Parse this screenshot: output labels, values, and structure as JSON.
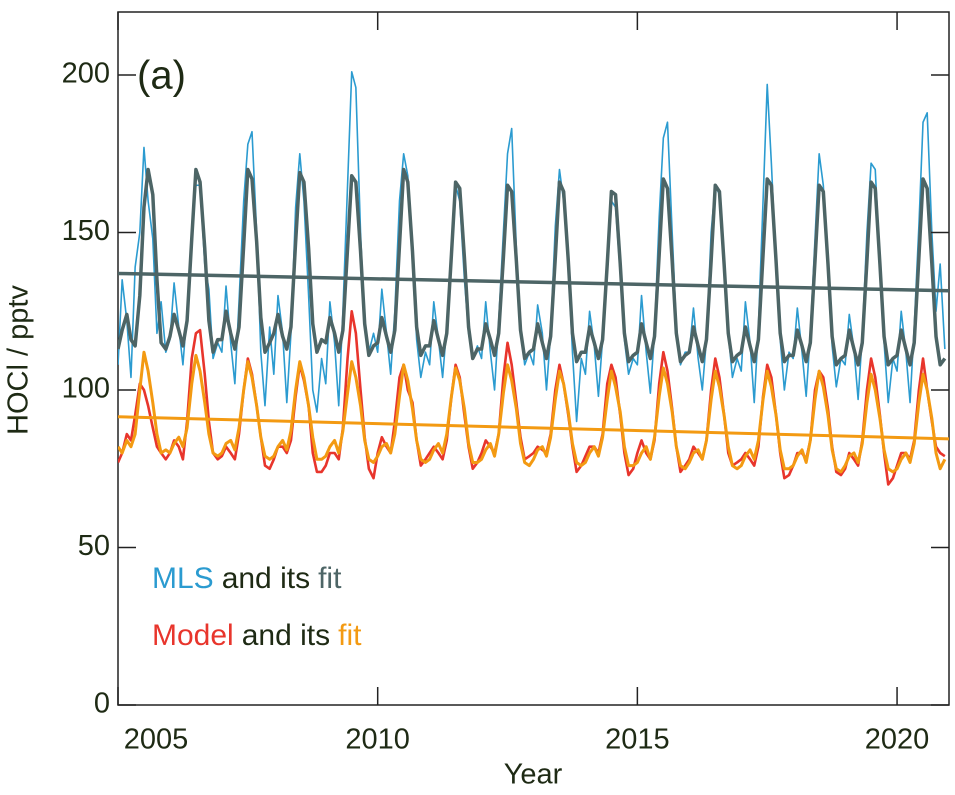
{
  "chart_data": {
    "type": "line",
    "annotation": "(a)",
    "xlabel": "Year",
    "ylabel": "HOCl / pptv",
    "legend_connector": "and its",
    "xlim": [
      2005,
      2021
    ],
    "ylim": [
      0,
      220
    ],
    "xticks": [
      2005,
      2010,
      2015,
      2020
    ],
    "yticks": [
      0,
      50,
      100,
      150,
      200
    ],
    "x": [
      2005,
      2005.08,
      2005.17,
      2005.25,
      2005.33,
      2005.42,
      2005.5,
      2005.58,
      2005.67,
      2005.75,
      2005.83,
      2005.92,
      2006,
      2006.08,
      2006.17,
      2006.25,
      2006.33,
      2006.42,
      2006.5,
      2006.58,
      2006.67,
      2006.75,
      2006.83,
      2006.92,
      2007,
      2007.08,
      2007.17,
      2007.25,
      2007.33,
      2007.42,
      2007.5,
      2007.58,
      2007.67,
      2007.75,
      2007.83,
      2007.92,
      2008,
      2008.08,
      2008.17,
      2008.25,
      2008.33,
      2008.42,
      2008.5,
      2008.58,
      2008.67,
      2008.75,
      2008.83,
      2008.92,
      2009,
      2009.08,
      2009.17,
      2009.25,
      2009.33,
      2009.42,
      2009.5,
      2009.58,
      2009.67,
      2009.75,
      2009.83,
      2009.92,
      2010,
      2010.08,
      2010.17,
      2010.25,
      2010.33,
      2010.42,
      2010.5,
      2010.58,
      2010.67,
      2010.75,
      2010.83,
      2010.92,
      2011,
      2011.08,
      2011.17,
      2011.25,
      2011.33,
      2011.42,
      2011.5,
      2011.58,
      2011.67,
      2011.75,
      2011.83,
      2011.92,
      2012,
      2012.08,
      2012.17,
      2012.25,
      2012.33,
      2012.42,
      2012.5,
      2012.58,
      2012.67,
      2012.75,
      2012.83,
      2012.92,
      2013,
      2013.08,
      2013.17,
      2013.25,
      2013.33,
      2013.42,
      2013.5,
      2013.58,
      2013.67,
      2013.75,
      2013.83,
      2013.92,
      2014,
      2014.08,
      2014.17,
      2014.25,
      2014.33,
      2014.42,
      2014.5,
      2014.58,
      2014.67,
      2014.75,
      2014.83,
      2014.92,
      2015,
      2015.08,
      2015.17,
      2015.25,
      2015.33,
      2015.42,
      2015.5,
      2015.58,
      2015.67,
      2015.75,
      2015.83,
      2015.92,
      2016,
      2016.08,
      2016.17,
      2016.25,
      2016.33,
      2016.42,
      2016.5,
      2016.58,
      2016.67,
      2016.75,
      2016.83,
      2016.92,
      2017,
      2017.08,
      2017.17,
      2017.25,
      2017.33,
      2017.42,
      2017.5,
      2017.58,
      2017.67,
      2017.75,
      2017.83,
      2017.92,
      2018,
      2018.08,
      2018.17,
      2018.25,
      2018.33,
      2018.42,
      2018.5,
      2018.58,
      2018.67,
      2018.75,
      2018.83,
      2018.92,
      2019,
      2019.08,
      2019.17,
      2019.25,
      2019.33,
      2019.42,
      2019.5,
      2019.58,
      2019.67,
      2019.75,
      2019.83,
      2019.92,
      2020,
      2020.08,
      2020.17,
      2020.25,
      2020.33,
      2020.42,
      2020.5,
      2020.58,
      2020.67,
      2020.75,
      2020.83,
      2020.92
    ],
    "series": [
      {
        "name": "MLS",
        "color": "#2b9bd0",
        "width": 1.6,
        "values": [
          108,
          135,
          122,
          104,
          139,
          150,
          177,
          160,
          148,
          118,
          128,
          112,
          116,
          134,
          120,
          108,
          125,
          150,
          165,
          165,
          140,
          132,
          110,
          115,
          112,
          133,
          115,
          102,
          128,
          160,
          178,
          182,
          150,
          112,
          95,
          120,
          105,
          130,
          118,
          96,
          118,
          158,
          175,
          160,
          130,
          100,
          93,
          110,
          102,
          128,
          115,
          95,
          125,
          165,
          201,
          196,
          150,
          120,
          112,
          118,
          112,
          132,
          118,
          105,
          125,
          160,
          175,
          168,
          140,
          116,
          104,
          112,
          108,
          128,
          116,
          104,
          120,
          140,
          165,
          160,
          135,
          118,
          110,
          114,
          110,
          128,
          112,
          100,
          122,
          150,
          175,
          183,
          145,
          120,
          108,
          112,
          108,
          127,
          118,
          100,
          118,
          152,
          170,
          160,
          140,
          112,
          90,
          110,
          105,
          125,
          114,
          98,
          116,
          138,
          160,
          158,
          137,
          116,
          105,
          110,
          108,
          130,
          112,
          99,
          118,
          155,
          180,
          185,
          150,
          120,
          108,
          112,
          112,
          126,
          110,
          100,
          116,
          150,
          165,
          162,
          138,
          118,
          104,
          110,
          106,
          128,
          115,
          96,
          120,
          160,
          197,
          172,
          140,
          116,
          100,
          112,
          110,
          126,
          112,
          98,
          118,
          148,
          175,
          165,
          140,
          114,
          101,
          110,
          108,
          124,
          113,
          97,
          117,
          150,
          172,
          170,
          140,
          115,
          96,
          110,
          106,
          125,
          112,
          96,
          120,
          152,
          185,
          188,
          150,
          125,
          140,
          113
        ]
      },
      {
        "name": "fit",
        "color": "#4d6566",
        "width": 3.5,
        "values": [
          113,
          119,
          124,
          116,
          114,
          130,
          158,
          170,
          162,
          135,
          115,
          113,
          117,
          124,
          119,
          114,
          122,
          148,
          170,
          166,
          145,
          122,
          112,
          116,
          116,
          125,
          118,
          113,
          120,
          146,
          170,
          167,
          147,
          123,
          112,
          115,
          118,
          124,
          117,
          113,
          120,
          147,
          169,
          166,
          145,
          121,
          112,
          116,
          115,
          123,
          118,
          112,
          119,
          145,
          168,
          166,
          144,
          121,
          111,
          114,
          115,
          123,
          117,
          112,
          119,
          146,
          170,
          166,
          144,
          120,
          111,
          114,
          114,
          122,
          116,
          111,
          118,
          143,
          166,
          164,
          142,
          120,
          110,
          113,
          113,
          121,
          116,
          111,
          118,
          142,
          165,
          163,
          141,
          119,
          110,
          112,
          113,
          121,
          115,
          110,
          117,
          142,
          166,
          163,
          141,
          118,
          109,
          112,
          112,
          120,
          115,
          110,
          116,
          140,
          163,
          162,
          140,
          118,
          109,
          111,
          112,
          121,
          115,
          110,
          117,
          143,
          167,
          164,
          141,
          118,
          109,
          111,
          112,
          120,
          114,
          109,
          116,
          141,
          165,
          163,
          140,
          118,
          109,
          111,
          112,
          120,
          114,
          109,
          116,
          143,
          167,
          165,
          141,
          118,
          109,
          111,
          111,
          119,
          114,
          109,
          115,
          141,
          165,
          163,
          140,
          117,
          108,
          110,
          111,
          119,
          113,
          108,
          115,
          141,
          166,
          164,
          140,
          117,
          108,
          110,
          111,
          119,
          113,
          108,
          115,
          142,
          167,
          164,
          140,
          117,
          108,
          110
        ],
        "trend": {
          "x": [
            2005,
            2021
          ],
          "values": [
            137,
            131.5
          ]
        }
      },
      {
        "name": "Model",
        "color": "#e8352c",
        "width": 2.6,
        "values": [
          77,
          80,
          86,
          84,
          92,
          102,
          100,
          95,
          88,
          82,
          80,
          78,
          80,
          84,
          82,
          78,
          90,
          110,
          118,
          119,
          105,
          90,
          80,
          78,
          79,
          82,
          80,
          78,
          86,
          100,
          110,
          105,
          95,
          85,
          76,
          75,
          78,
          82,
          82,
          80,
          84,
          98,
          108,
          103,
          95,
          80,
          74,
          74,
          76,
          80,
          80,
          78,
          88,
          110,
          125,
          118,
          100,
          85,
          75,
          72,
          80,
          85,
          82,
          80,
          90,
          104,
          108,
          100,
          96,
          84,
          76,
          78,
          80,
          82,
          80,
          78,
          84,
          98,
          108,
          104,
          92,
          82,
          75,
          77,
          80,
          84,
          82,
          80,
          86,
          104,
          115,
          108,
          96,
          85,
          78,
          79,
          80,
          82,
          81,
          80,
          86,
          100,
          108,
          102,
          92,
          82,
          74,
          76,
          79,
          82,
          82,
          80,
          86,
          102,
          108,
          104,
          92,
          80,
          73,
          75,
          80,
          84,
          80,
          78,
          84,
          102,
          112,
          106,
          94,
          82,
          74,
          76,
          78,
          82,
          80,
          78,
          84,
          100,
          110,
          104,
          92,
          80,
          76,
          77,
          78,
          80,
          78,
          76,
          82,
          98,
          108,
          104,
          92,
          80,
          72,
          73,
          76,
          80,
          80,
          78,
          84,
          100,
          106,
          104,
          94,
          82,
          74,
          73,
          75,
          80,
          78,
          76,
          84,
          100,
          110,
          104,
          92,
          80,
          70,
          72,
          76,
          80,
          80,
          78,
          84,
          100,
          110,
          100,
          90,
          82,
          80,
          79
        ]
      },
      {
        "name": "fit",
        "color": "#f39a12",
        "width": 3,
        "values": [
          82,
          80,
          84,
          82,
          86,
          100,
          112,
          106,
          96,
          86,
          80,
          81,
          80,
          83,
          85,
          82,
          88,
          102,
          111,
          106,
          96,
          86,
          80,
          79,
          80,
          83,
          84,
          81,
          88,
          100,
          109,
          104,
          95,
          85,
          79,
          78,
          79,
          82,
          84,
          81,
          87,
          100,
          109,
          104,
          95,
          85,
          78,
          78,
          79,
          82,
          84,
          80,
          87,
          99,
          109,
          104,
          95,
          84,
          78,
          77,
          79,
          82,
          83,
          80,
          86,
          98,
          108,
          103,
          94,
          84,
          78,
          77,
          78,
          81,
          83,
          80,
          86,
          98,
          107,
          103,
          94,
          83,
          77,
          77,
          78,
          81,
          83,
          79,
          86,
          99,
          108,
          103,
          94,
          83,
          77,
          76,
          78,
          81,
          82,
          79,
          85,
          97,
          106,
          102,
          93,
          83,
          77,
          76,
          77,
          80,
          82,
          79,
          85,
          97,
          106,
          101,
          93,
          82,
          76,
          76,
          77,
          80,
          82,
          78,
          85,
          98,
          107,
          102,
          93,
          82,
          76,
          75,
          77,
          80,
          81,
          78,
          84,
          97,
          106,
          101,
          92,
          82,
          76,
          75,
          76,
          79,
          81,
          78,
          84,
          97,
          106,
          101,
          92,
          81,
          75,
          75,
          76,
          79,
          81,
          77,
          84,
          97,
          106,
          101,
          92,
          81,
          75,
          74,
          76,
          79,
          80,
          77,
          83,
          96,
          105,
          100,
          91,
          81,
          75,
          74,
          75,
          78,
          80,
          77,
          83,
          96,
          105,
          100,
          91,
          80,
          75,
          78
        ],
        "trend": {
          "x": [
            2005,
            2021
          ],
          "values": [
            91.5,
            84.5
          ]
        }
      }
    ]
  }
}
